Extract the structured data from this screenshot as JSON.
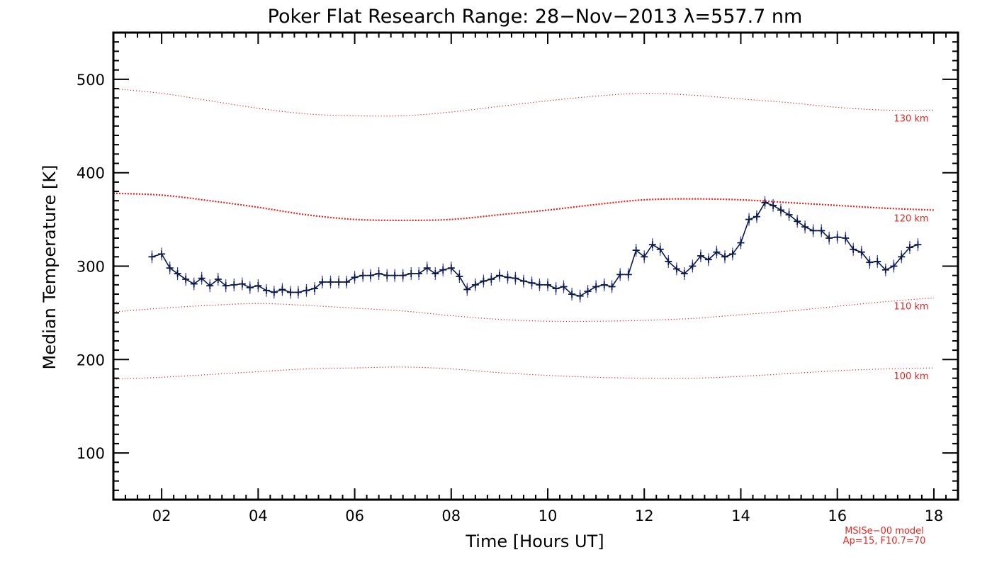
{
  "chart_data": {
    "type": "line",
    "title": "Poker Flat Research Range: 28−Nov−2013 λ=557.7 nm",
    "xlabel": "Time [Hours UT]",
    "ylabel": "Median Temperature [K]",
    "xlim": [
      1.0,
      18.5
    ],
    "ylim": [
      50,
      550
    ],
    "x_ticks": [
      2,
      4,
      6,
      8,
      10,
      12,
      14,
      16,
      18
    ],
    "x_tick_labels": [
      "02",
      "04",
      "06",
      "08",
      "10",
      "12",
      "14",
      "16",
      "18"
    ],
    "y_ticks": [
      100,
      200,
      300,
      400,
      500
    ],
    "y_tick_labels": [
      "100",
      "200",
      "300",
      "400",
      "500"
    ],
    "grid": false,
    "note": [
      "MSISe−00 model",
      "Ap=15, F10.7=70"
    ],
    "colors": {
      "measurement": "#0b1a4a",
      "error_bars": "#2b3bd6",
      "model": "#e8241e"
    },
    "series": [
      {
        "name": "median-temperature",
        "marker": "plus",
        "x": [
          1.8,
          2.0,
          2.17,
          2.33,
          2.5,
          2.67,
          2.83,
          3.0,
          3.17,
          3.33,
          3.5,
          3.67,
          3.83,
          4.0,
          4.17,
          4.33,
          4.5,
          4.67,
          4.83,
          5.0,
          5.17,
          5.33,
          5.5,
          5.67,
          5.83,
          6.0,
          6.17,
          6.33,
          6.5,
          6.67,
          6.83,
          7.0,
          7.17,
          7.33,
          7.5,
          7.67,
          7.83,
          8.0,
          8.17,
          8.33,
          8.5,
          8.67,
          8.83,
          9.0,
          9.17,
          9.33,
          9.5,
          9.67,
          9.83,
          10.0,
          10.17,
          10.33,
          10.5,
          10.67,
          10.83,
          11.0,
          11.17,
          11.33,
          11.5,
          11.67,
          11.83,
          12.0,
          12.17,
          12.33,
          12.5,
          12.67,
          12.83,
          13.0,
          13.17,
          13.33,
          13.5,
          13.67,
          13.83,
          14.0,
          14.17,
          14.33,
          14.5,
          14.67,
          14.83,
          15.0,
          15.17,
          15.33,
          15.5,
          15.67,
          15.83,
          16.0,
          16.17,
          16.33,
          16.5,
          16.67,
          16.83,
          17.0,
          17.17,
          17.33,
          17.5,
          17.67
        ],
        "values": [
          310,
          313,
          298,
          292,
          286,
          281,
          287,
          279,
          286,
          279,
          280,
          281,
          277,
          279,
          274,
          272,
          275,
          272,
          272,
          274,
          276,
          283,
          283,
          283,
          283,
          288,
          290,
          290,
          292,
          290,
          290,
          290,
          292,
          292,
          298,
          292,
          296,
          298,
          289,
          275,
          280,
          284,
          286,
          290,
          288,
          287,
          284,
          282,
          280,
          280,
          276,
          278,
          270,
          268,
          273,
          278,
          280,
          278,
          291,
          291,
          317,
          310,
          323,
          318,
          305,
          297,
          292,
          300,
          311,
          307,
          315,
          310,
          313,
          325,
          350,
          353,
          368,
          365,
          360,
          355,
          348,
          342,
          338,
          338,
          330,
          331,
          330,
          318,
          315,
          304,
          305,
          296,
          300,
          310,
          320,
          323
        ]
      }
    ],
    "model_curves": [
      {
        "name": "130 km",
        "style": "dotted",
        "x": [
          1,
          2,
          3,
          4,
          5,
          6,
          7,
          8,
          9,
          10,
          11,
          12,
          13,
          14,
          15,
          16,
          17,
          18
        ],
        "values": [
          490,
          485,
          477,
          469,
          463,
          461,
          461,
          465,
          471,
          477,
          482,
          485,
          483,
          479,
          475,
          470,
          467,
          467
        ]
      },
      {
        "name": "120 km",
        "style": "dotted-bold",
        "x": [
          1,
          2,
          3,
          4,
          5,
          6,
          7,
          8,
          9,
          10,
          11,
          12,
          13,
          14,
          15,
          16,
          17,
          18
        ],
        "values": [
          378,
          376,
          370,
          363,
          355,
          350,
          349,
          350,
          355,
          360,
          366,
          371,
          372,
          371,
          368,
          365,
          362,
          360
        ]
      },
      {
        "name": "110 km",
        "style": "dotted",
        "x": [
          1,
          2,
          3,
          4,
          5,
          6,
          7,
          8,
          9,
          10,
          11,
          12,
          13,
          14,
          15,
          16,
          17,
          18
        ],
        "values": [
          251,
          255,
          258,
          260,
          258,
          255,
          252,
          247,
          243,
          241,
          241,
          242,
          244,
          248,
          252,
          257,
          262,
          266
        ]
      },
      {
        "name": "100 km",
        "style": "dotted",
        "x": [
          1,
          2,
          3,
          4,
          5,
          6,
          7,
          8,
          9,
          10,
          11,
          12,
          13,
          14,
          15,
          16,
          17,
          18
        ],
        "values": [
          179,
          181,
          184,
          187,
          190,
          191,
          192,
          190,
          186,
          183,
          181,
          180,
          180,
          182,
          185,
          188,
          190,
          191
        ]
      }
    ]
  }
}
